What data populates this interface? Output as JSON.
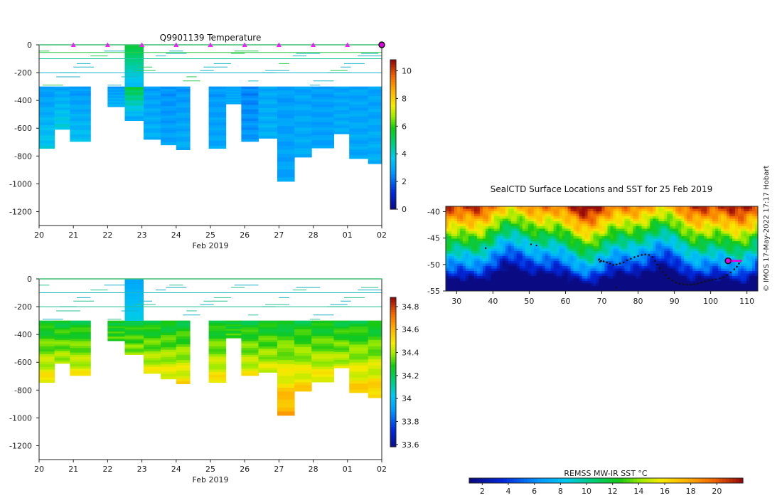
{
  "chart_data": [
    {
      "type": "heatmap",
      "id": "temperature",
      "title": "Q9901139  Temperature",
      "xlabel": "Feb 2019",
      "x_tick_labels": [
        "20",
        "21",
        "22",
        "23",
        "24",
        "25",
        "26",
        "27",
        "28",
        "01",
        "02"
      ],
      "xlim": [
        20,
        30
      ],
      "ylim": [
        -1300,
        0
      ],
      "y_ticks": [
        0,
        -200,
        -400,
        -600,
        -800,
        -1000,
        -1200
      ],
      "colorbar": {
        "min": 0,
        "max": 10.8,
        "ticks": [
          0,
          2,
          4,
          6,
          8,
          10
        ]
      },
      "profiles": [
        {
          "x0": 20.0,
          "x1": 20.45,
          "bottom": -745,
          "top_val": 2.8,
          "bottom_val": 3.8
        },
        {
          "x0": 20.45,
          "x1": 20.9,
          "bottom": -608,
          "top_val": 3.0,
          "bottom_val": 4.0
        },
        {
          "x0": 20.9,
          "x1": 21.5,
          "bottom": -695,
          "top_val": 2.8,
          "bottom_val": 3.6
        },
        {
          "x0": 22.0,
          "x1": 22.5,
          "bottom": -445,
          "top_val": 2.8,
          "bottom_val": 3.4
        },
        {
          "x0": 22.5,
          "x1": 23.05,
          "bottom": -545,
          "top_val": 5.5,
          "bottom_val": 3.0
        },
        {
          "x0": 23.05,
          "x1": 23.55,
          "bottom": -680,
          "top_val": 2.9,
          "bottom_val": 3.3
        },
        {
          "x0": 23.55,
          "x1": 24.0,
          "bottom": -720,
          "top_val": 2.7,
          "bottom_val": 3.0
        },
        {
          "x0": 24.0,
          "x1": 24.4,
          "bottom": -755,
          "top_val": 2.8,
          "bottom_val": 3.2
        },
        {
          "x0": 24.95,
          "x1": 25.45,
          "bottom": -745,
          "top_val": 2.8,
          "bottom_val": 3.1
        },
        {
          "x0": 25.45,
          "x1": 25.9,
          "bottom": -425,
          "top_val": 3.0,
          "bottom_val": 3.2
        },
        {
          "x0": 25.9,
          "x1": 26.4,
          "bottom": -695,
          "top_val": 2.5,
          "bottom_val": 2.8
        },
        {
          "x0": 26.4,
          "x1": 26.95,
          "bottom": -672,
          "top_val": 3.1,
          "bottom_val": 3.3
        },
        {
          "x0": 26.95,
          "x1": 27.45,
          "bottom": -982,
          "top_val": 2.9,
          "bottom_val": 3.0
        },
        {
          "x0": 27.45,
          "x1": 27.95,
          "bottom": -808,
          "top_val": 3.0,
          "bottom_val": 3.2
        },
        {
          "x0": 27.95,
          "x1": 28.6,
          "bottom": -742,
          "top_val": 2.9,
          "bottom_val": 3.0
        },
        {
          "x0": 28.6,
          "x1": 29.05,
          "bottom": -640,
          "top_val": 3.0,
          "bottom_val": 3.2
        },
        {
          "x0": 29.05,
          "x1": 29.6,
          "bottom": -818,
          "top_val": 3.0,
          "bottom_val": 3.1
        },
        {
          "x0": 29.6,
          "x1": 30.05,
          "bottom": -855,
          "top_val": 3.0,
          "bottom_val": 3.2
        }
      ],
      "markers_x": [
        21,
        22,
        23,
        24,
        25,
        26,
        27,
        28,
        29,
        30
      ]
    },
    {
      "type": "heatmap",
      "id": "salinity",
      "title": "",
      "xlabel": "Feb 2019",
      "x_tick_labels": [
        "20",
        "21",
        "22",
        "23",
        "24",
        "25",
        "26",
        "27",
        "28",
        "01",
        "02"
      ],
      "xlim": [
        20,
        30
      ],
      "ylim": [
        -1300,
        0
      ],
      "y_ticks": [
        0,
        -200,
        -400,
        -600,
        -800,
        -1000,
        -1200
      ],
      "colorbar": {
        "min": 33.58,
        "max": 34.88,
        "ticks": [
          33.6,
          33.8,
          34,
          34.2,
          34.4,
          34.6,
          34.8
        ],
        "tick_labels": [
          "33.6",
          "33.8",
          "34",
          "34.2",
          "34.4",
          "34.6",
          "34.8"
        ]
      }
    },
    {
      "type": "heatmap",
      "id": "sst-map",
      "title": "SealCTD Surface Locations and SST for 25 Feb 2019",
      "xlim": [
        27,
        113
      ],
      "ylim": [
        -55,
        -39
      ],
      "x_ticks": [
        30,
        40,
        50,
        60,
        70,
        80,
        90,
        100,
        110
      ],
      "y_ticks": [
        -40,
        -45,
        -50,
        -55
      ],
      "colorbar": {
        "label": "REMSS MW-IR SST °C",
        "min": 1,
        "max": 22,
        "ticks": [
          2,
          4,
          6,
          8,
          10,
          12,
          14,
          16,
          18,
          20
        ]
      },
      "track": [
        [
          69.2,
          -49.1
        ],
        [
          69.8,
          -49.3
        ],
        [
          70.5,
          -49.4
        ],
        [
          71.4,
          -49.6
        ],
        [
          72.3,
          -49.8
        ],
        [
          73.2,
          -50.1
        ],
        [
          74.1,
          -50.0
        ],
        [
          75.0,
          -49.8
        ],
        [
          76.0,
          -49.6
        ],
        [
          77.0,
          -49.2
        ],
        [
          78.0,
          -48.9
        ],
        [
          79.0,
          -48.6
        ],
        [
          80.0,
          -48.4
        ],
        [
          81.0,
          -48.2
        ],
        [
          82.0,
          -48.1
        ],
        [
          83.0,
          -48.2
        ],
        [
          84.0,
          -48.6
        ],
        [
          84.7,
          -49.3
        ],
        [
          85.3,
          -50.0
        ],
        [
          86.0,
          -50.7
        ],
        [
          86.8,
          -51.4
        ],
        [
          87.6,
          -52.0
        ],
        [
          88.5,
          -52.6
        ],
        [
          89.5,
          -53.0
        ],
        [
          90.5,
          -53.4
        ],
        [
          91.5,
          -53.6
        ],
        [
          92.5,
          -53.7
        ],
        [
          93.5,
          -53.8
        ],
        [
          94.5,
          -53.8
        ],
        [
          95.5,
          -53.7
        ],
        [
          96.5,
          -53.6
        ],
        [
          97.5,
          -53.4
        ],
        [
          98.5,
          -53.2
        ],
        [
          99.5,
          -53.0
        ],
        [
          100.5,
          -52.9
        ],
        [
          101.5,
          -52.8
        ],
        [
          102.5,
          -52.6
        ],
        [
          103.5,
          -52.4
        ],
        [
          104.5,
          -52.0
        ],
        [
          105.5,
          -51.5
        ],
        [
          106.5,
          -50.9
        ],
        [
          107.2,
          -50.4
        ],
        [
          107.8,
          -49.8
        ],
        [
          108.2,
          -49.4
        ]
      ],
      "scatter_points": [
        [
          38.0,
          -46.9
        ],
        [
          50.5,
          -46.2
        ],
        [
          52.0,
          -46.4
        ],
        [
          69.3,
          -49.0
        ],
        [
          69.5,
          -49.5
        ],
        [
          74.0,
          -54.3
        ]
      ],
      "current_position": [
        104.8,
        -49.3
      ],
      "credit": "© IMOS 17-May-2022 17:17 Hobart"
    }
  ]
}
